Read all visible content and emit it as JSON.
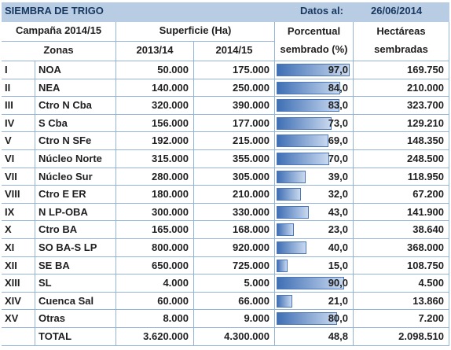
{
  "header": {
    "title": "SIEMBRA DE TRIGO",
    "date_label": "Datos al:",
    "date": "26/06/2014"
  },
  "columns": {
    "campaign": "Campaña 2014/15",
    "surface": "Superficie (Ha)",
    "pct_line1": "Porcentual",
    "pct_line2": "sembrado (%)",
    "ha_line1": "Hectáreas",
    "ha_line2": "sembradas",
    "zones": "Zonas",
    "y1": "2013/14",
    "y2": "2014/15"
  },
  "rows": [
    {
      "num": "I",
      "zone": "NOA",
      "s1": "50.000",
      "s2": "175.000",
      "pct": {
        "value": 97,
        "label": "97,0"
      },
      "ha": "169.750"
    },
    {
      "num": "II",
      "zone": "NEA",
      "s1": "140.000",
      "s2": "250.000",
      "pct": {
        "value": 84,
        "label": "84,0"
      },
      "ha": "210.000"
    },
    {
      "num": "III",
      "zone": "Ctro N Cba",
      "s1": "320.000",
      "s2": "390.000",
      "pct": {
        "value": 83,
        "label": "83,0"
      },
      "ha": "323.700"
    },
    {
      "num": "IV",
      "zone": "S Cba",
      "s1": "156.000",
      "s2": "177.000",
      "pct": {
        "value": 73,
        "label": "73,0"
      },
      "ha": "129.210"
    },
    {
      "num": "V",
      "zone": "Ctro N SFe",
      "s1": "192.000",
      "s2": "215.000",
      "pct": {
        "value": 69,
        "label": "69,0"
      },
      "ha": "148.350"
    },
    {
      "num": "VI",
      "zone": "Núcleo Norte",
      "s1": "315.000",
      "s2": "355.000",
      "pct": {
        "value": 70,
        "label": "70,0"
      },
      "ha": "248.500"
    },
    {
      "num": "VII",
      "zone": "Núcleo Sur",
      "s1": "280.000",
      "s2": "305.000",
      "pct": {
        "value": 39,
        "label": "39,0"
      },
      "ha": "118.950"
    },
    {
      "num": "VIII",
      "zone": "Ctro E ER",
      "s1": "180.000",
      "s2": "210.000",
      "pct": {
        "value": 32,
        "label": "32,0"
      },
      "ha": "67.200"
    },
    {
      "num": "IX",
      "zone": "N LP-OBA",
      "s1": "300.000",
      "s2": "330.000",
      "pct": {
        "value": 43,
        "label": "43,0"
      },
      "ha": "141.900"
    },
    {
      "num": "X",
      "zone": "Ctro BA",
      "s1": "165.000",
      "s2": "168.000",
      "pct": {
        "value": 23,
        "label": "23,0"
      },
      "ha": "38.640"
    },
    {
      "num": "XI",
      "zone": "SO BA-S LP",
      "s1": "800.000",
      "s2": "920.000",
      "pct": {
        "value": 40,
        "label": "40,0"
      },
      "ha": "368.000"
    },
    {
      "num": "XII",
      "zone": "SE BA",
      "s1": "650.000",
      "s2": "725.000",
      "pct": {
        "value": 15,
        "label": "15,0"
      },
      "ha": "108.750"
    },
    {
      "num": "XIII",
      "zone": "SL",
      "s1": "4.000",
      "s2": "5.000",
      "pct": {
        "value": 90,
        "label": "90,0"
      },
      "ha": "4.500"
    },
    {
      "num": "XIV",
      "zone": "Cuenca Sal",
      "s1": "60.000",
      "s2": "66.000",
      "pct": {
        "value": 21,
        "label": "21,0"
      },
      "ha": "13.860"
    },
    {
      "num": "XV",
      "zone": "Otras",
      "s1": "8.000",
      "s2": "9.000",
      "pct": {
        "value": 80,
        "label": "80,0"
      },
      "ha": "7.200"
    }
  ],
  "total": {
    "label": "TOTAL",
    "s1": "3.620.000",
    "s2": "4.300.000",
    "pct": "48,8",
    "ha": "2.098.510"
  }
}
